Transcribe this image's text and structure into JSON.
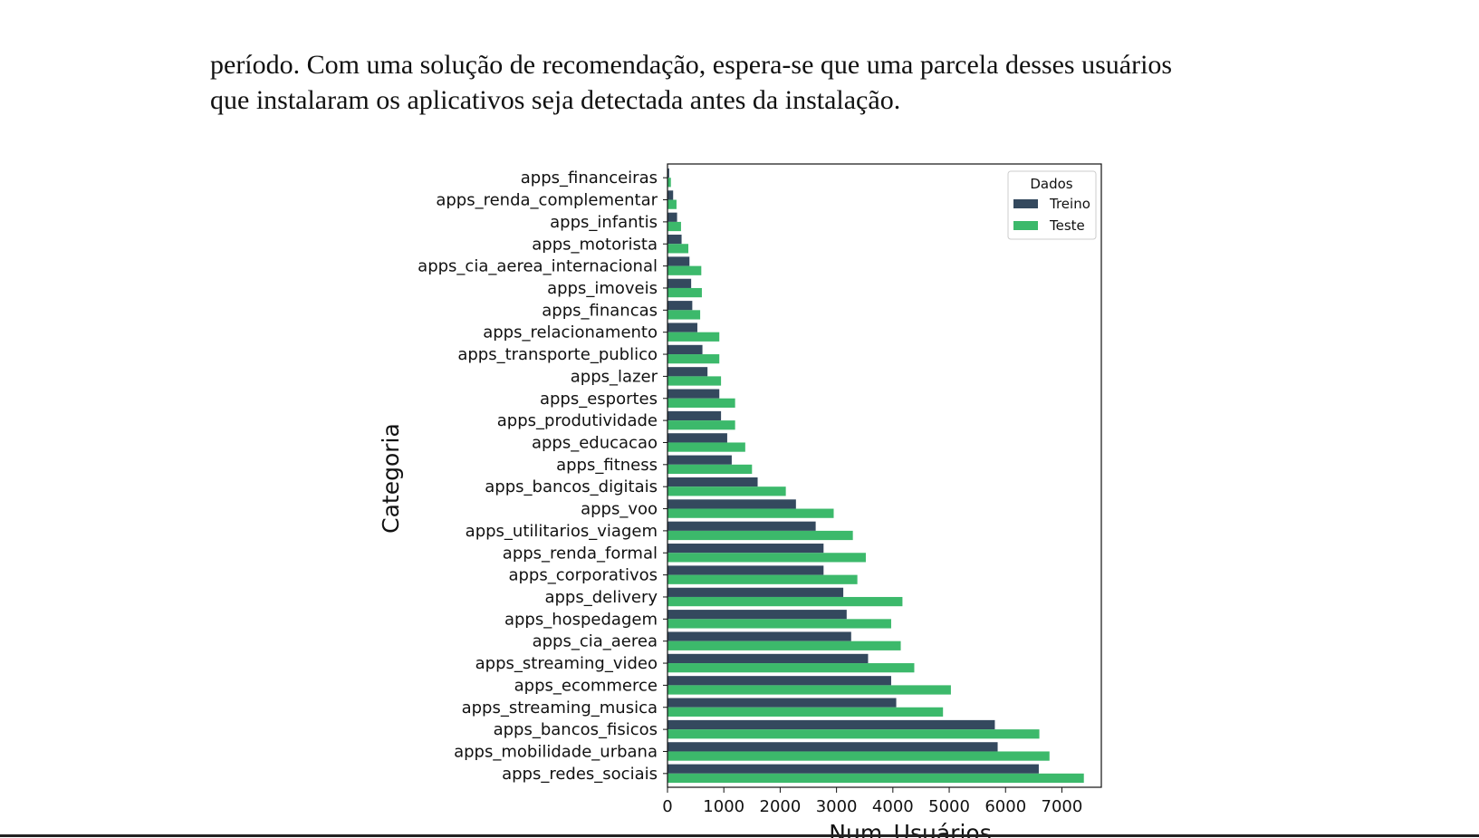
{
  "paragraph": {
    "line1": "período. Com uma solução de recomendação, espera-se que uma parcela desses usuários",
    "line2": "que instalaram os aplicativos seja detectada antes da instalação."
  },
  "chart_data": {
    "type": "bar",
    "orientation": "horizontal",
    "title": "",
    "xlabel": "Num_Usuários",
    "ylabel": "Categoria",
    "xlim": [
      0,
      7700
    ],
    "xticks": [
      0,
      1000,
      2000,
      3000,
      4000,
      5000,
      6000,
      7000
    ],
    "grid": false,
    "legend": {
      "title": "Dados",
      "placement": "top-right"
    },
    "colors": {
      "Treino": "#34495e",
      "Teste": "#3cb96b"
    },
    "categories": [
      "apps_financeiras",
      "apps_renda_complementar",
      "apps_infantis",
      "apps_motorista",
      "apps_cia_aerea_internacional",
      "apps_imoveis",
      "apps_financas",
      "apps_relacionamento",
      "apps_transporte_publico",
      "apps_lazer",
      "apps_esportes",
      "apps_produtividade",
      "apps_educacao",
      "apps_fitness",
      "apps_bancos_digitais",
      "apps_voo",
      "apps_utilitarios_viagem",
      "apps_renda_formal",
      "apps_corporativos",
      "apps_delivery",
      "apps_hospedagem",
      "apps_cia_aerea",
      "apps_streaming_video",
      "apps_ecommerce",
      "apps_streaming_musica",
      "apps_bancos_fisicos",
      "apps_mobilidade_urbana",
      "apps_redes_sociais"
    ],
    "series": [
      {
        "name": "Treino",
        "values": [
          30,
          100,
          170,
          250,
          390,
          420,
          440,
          530,
          620,
          710,
          920,
          950,
          1060,
          1140,
          1600,
          2280,
          2630,
          2770,
          2770,
          3120,
          3180,
          3260,
          3560,
          3970,
          4060,
          5810,
          5860,
          6590
        ]
      },
      {
        "name": "Teste",
        "values": [
          60,
          160,
          240,
          370,
          600,
          610,
          580,
          920,
          920,
          950,
          1200,
          1200,
          1380,
          1500,
          2100,
          2950,
          3290,
          3520,
          3370,
          4170,
          3970,
          4140,
          4380,
          5030,
          4890,
          6600,
          6780,
          7390
        ]
      }
    ]
  }
}
